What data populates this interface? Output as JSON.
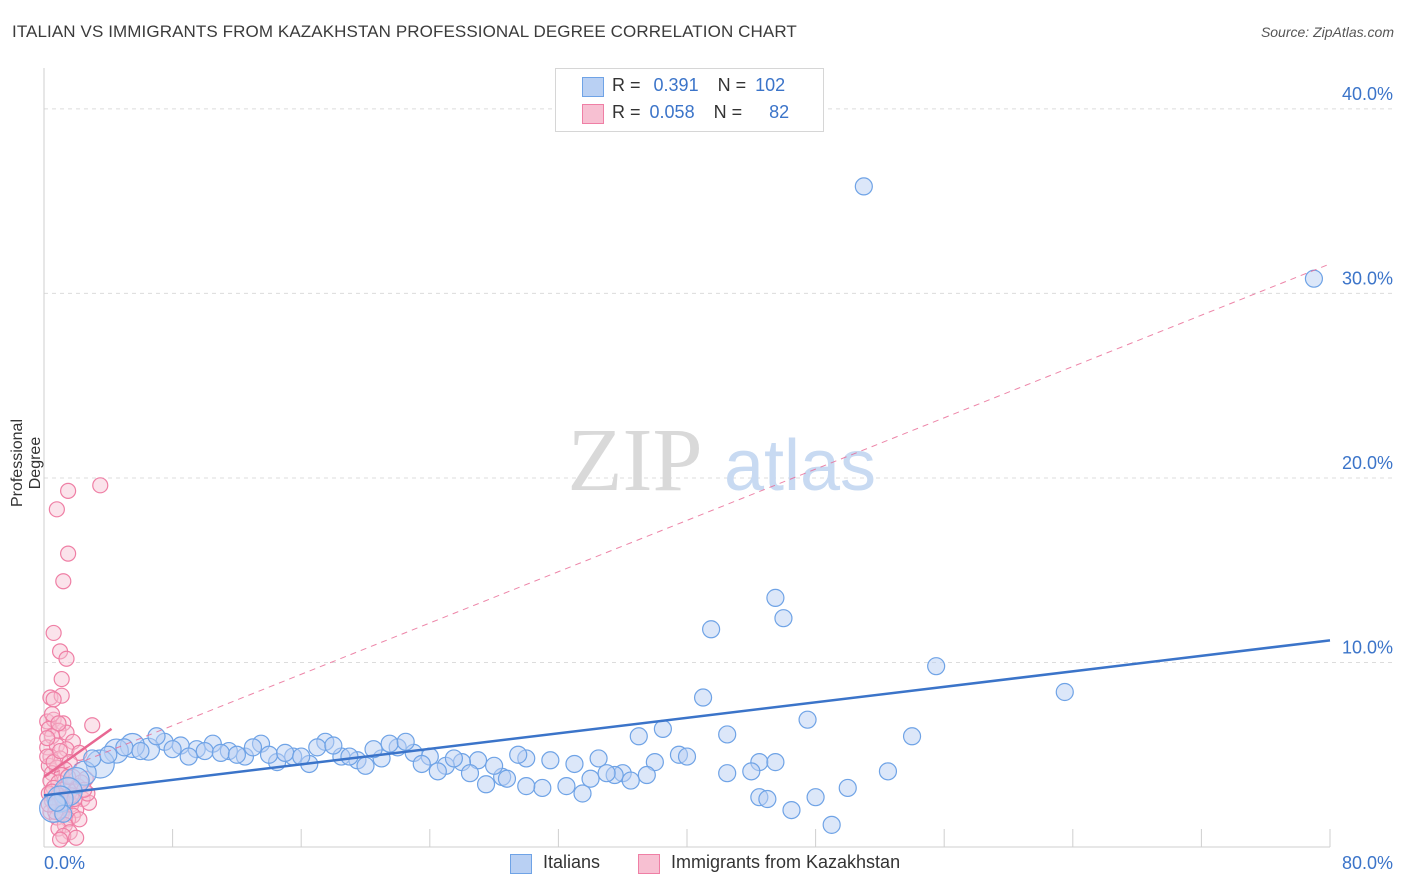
{
  "title": "ITALIAN VS IMMIGRANTS FROM KAZAKHSTAN PROFESSIONAL DEGREE CORRELATION CHART",
  "source": "Source: ZipAtlas.com",
  "colors": {
    "blue": "#6fa3e6",
    "blue_fill": "#b9d0f3",
    "blue_line": "#3b74c9",
    "pink": "#ef7fa5",
    "pink_fill": "#f7c0d2",
    "pink_line": "#e86792"
  },
  "legend": {
    "rows": [
      {
        "r_label": "R =",
        "r_value": "0.391",
        "n_label": "N =",
        "n_value": "102"
      },
      {
        "r_label": "R =",
        "r_value": "0.058",
        "n_label": "N =",
        "n_value": "82"
      }
    ]
  },
  "bottom_legend": {
    "series1": "Italians",
    "series2": "Immigrants from Kazakhstan"
  },
  "watermark": {
    "part1": "ZIP",
    "part2": "atlas"
  },
  "chart_data": {
    "type": "scatter",
    "title": "ITALIAN VS IMMIGRANTS FROM KAZAKHSTAN PROFESSIONAL DEGREE CORRELATION CHART",
    "xlabel": "",
    "ylabel": "Professional Degree",
    "xlim": [
      0,
      80
    ],
    "ylim": [
      0,
      42
    ],
    "x_tick_labels": [
      "0.0%",
      "80.0%"
    ],
    "y_ticks": [
      {
        "value": 10,
        "label": "10.0%"
      },
      {
        "value": 20,
        "label": "20.0%"
      },
      {
        "value": 30,
        "label": "30.0%"
      },
      {
        "value": 40,
        "label": "40.0%"
      }
    ],
    "series": [
      {
        "name": "Italians",
        "r": 0.391,
        "n": 102,
        "trend": {
          "x0": 0,
          "y0": 2.8,
          "x1": 80,
          "y1": 11.2
        },
        "points": [
          [
            51,
            35.8
          ],
          [
            79,
            30.8
          ],
          [
            45.5,
            13.5
          ],
          [
            46,
            12.4
          ],
          [
            41.5,
            11.8
          ],
          [
            55.5,
            9.8
          ],
          [
            63.5,
            8.4
          ],
          [
            41,
            8.1
          ],
          [
            47.5,
            6.9
          ],
          [
            38.5,
            6.4
          ],
          [
            42.5,
            6.1
          ],
          [
            54,
            6.0
          ],
          [
            37,
            6.0
          ],
          [
            39.5,
            5.0
          ],
          [
            38,
            4.6
          ],
          [
            36,
            4.0
          ],
          [
            44.5,
            4.6
          ],
          [
            45.5,
            4.6
          ],
          [
            52.5,
            4.1
          ],
          [
            42.5,
            4.0
          ],
          [
            30,
            4.8
          ],
          [
            31.5,
            4.7
          ],
          [
            33,
            4.5
          ],
          [
            34.5,
            4.8
          ],
          [
            36.5,
            3.6
          ],
          [
            35.5,
            3.9
          ],
          [
            32.5,
            3.3
          ],
          [
            31,
            3.2
          ],
          [
            30,
            3.3
          ],
          [
            28.5,
            3.8
          ],
          [
            29.5,
            5.0
          ],
          [
            28,
            4.4
          ],
          [
            27,
            4.7
          ],
          [
            26,
            4.6
          ],
          [
            25,
            4.4
          ],
          [
            24,
            4.9
          ],
          [
            23,
            5.1
          ],
          [
            22,
            5.4
          ],
          [
            21,
            4.8
          ],
          [
            20.5,
            5.3
          ],
          [
            19.5,
            4.7
          ],
          [
            18.5,
            4.9
          ],
          [
            17.5,
            5.7
          ],
          [
            16.5,
            4.5
          ],
          [
            15.5,
            4.9
          ],
          [
            14.5,
            4.6
          ],
          [
            13.5,
            5.6
          ],
          [
            12.5,
            4.9
          ],
          [
            11.5,
            5.2
          ],
          [
            10.5,
            5.6
          ],
          [
            9.5,
            5.3
          ],
          [
            8.5,
            5.5
          ],
          [
            7.5,
            5.7
          ],
          [
            6.5,
            5.3
          ],
          [
            5.5,
            5.5
          ],
          [
            4.5,
            5.2
          ],
          [
            3.5,
            4.5
          ],
          [
            2.5,
            4.0
          ],
          [
            2.0,
            3.6
          ],
          [
            1.5,
            3.0
          ],
          [
            1.0,
            2.6
          ],
          [
            0.6,
            2.1
          ],
          [
            3.0,
            4.8
          ],
          [
            4.0,
            5.0
          ],
          [
            5.0,
            5.4
          ],
          [
            6.0,
            5.2
          ],
          [
            7.0,
            6.0
          ],
          [
            8.0,
            5.3
          ],
          [
            9.0,
            4.9
          ],
          [
            10.0,
            5.2
          ],
          [
            11.0,
            5.1
          ],
          [
            12.0,
            5.0
          ],
          [
            13.0,
            5.4
          ],
          [
            14.0,
            5.0
          ],
          [
            15.0,
            5.1
          ],
          [
            16.0,
            4.9
          ],
          [
            17.0,
            5.4
          ],
          [
            18.0,
            5.5
          ],
          [
            19.0,
            4.9
          ],
          [
            20.0,
            4.4
          ],
          [
            21.5,
            5.6
          ],
          [
            22.5,
            5.7
          ],
          [
            23.5,
            4.5
          ],
          [
            24.5,
            4.1
          ],
          [
            25.5,
            4.8
          ],
          [
            26.5,
            4.0
          ],
          [
            27.5,
            3.4
          ],
          [
            28.8,
            3.7
          ],
          [
            33.5,
            2.9
          ],
          [
            34,
            3.7
          ],
          [
            35,
            4.0
          ],
          [
            37.5,
            3.9
          ],
          [
            46.5,
            2.0
          ],
          [
            49,
            1.2
          ],
          [
            50,
            3.2
          ],
          [
            48,
            2.7
          ],
          [
            44.5,
            2.7
          ],
          [
            45,
            2.6
          ],
          [
            40,
            4.9
          ],
          [
            44,
            4.1
          ],
          [
            1.2,
            1.8
          ],
          [
            0.8,
            2.4
          ]
        ]
      },
      {
        "name": "Immigrants from Kazakhstan",
        "r": 0.058,
        "n": 82,
        "trend": {
          "x0": 0,
          "y0": 3.8,
          "x1": 4.2,
          "y1": 6.4
        },
        "trend_extended": {
          "x0": 0,
          "y0": 3.8,
          "x1": 80,
          "y1": 31.6
        },
        "points": [
          [
            3.5,
            19.6
          ],
          [
            1.5,
            19.3
          ],
          [
            0.8,
            18.3
          ],
          [
            1.5,
            15.9
          ],
          [
            1.2,
            14.4
          ],
          [
            0.6,
            11.6
          ],
          [
            1.0,
            10.6
          ],
          [
            1.4,
            10.2
          ],
          [
            1.1,
            9.1
          ],
          [
            0.4,
            8.1
          ],
          [
            1.1,
            8.2
          ],
          [
            0.6,
            8.0
          ],
          [
            0.2,
            6.8
          ],
          [
            0.6,
            6.9
          ],
          [
            1.2,
            6.7
          ],
          [
            3.0,
            6.6
          ],
          [
            0.3,
            6.4
          ],
          [
            0.9,
            6.3
          ],
          [
            1.4,
            6.2
          ],
          [
            0.5,
            6.0
          ],
          [
            1.8,
            5.7
          ],
          [
            0.2,
            5.4
          ],
          [
            0.8,
            5.5
          ],
          [
            1.4,
            5.3
          ],
          [
            2.2,
            5.1
          ],
          [
            0.4,
            4.9
          ],
          [
            1.0,
            4.8
          ],
          [
            1.6,
            4.6
          ],
          [
            0.3,
            4.4
          ],
          [
            0.8,
            4.3
          ],
          [
            1.3,
            4.2
          ],
          [
            0.5,
            4.0
          ],
          [
            1.1,
            3.9
          ],
          [
            1.8,
            3.8
          ],
          [
            2.6,
            3.7
          ],
          [
            0.4,
            3.6
          ],
          [
            0.9,
            3.5
          ],
          [
            1.5,
            3.4
          ],
          [
            2.1,
            3.3
          ],
          [
            0.6,
            3.2
          ],
          [
            1.2,
            3.1
          ],
          [
            1.9,
            3.0
          ],
          [
            0.3,
            2.9
          ],
          [
            0.9,
            2.8
          ],
          [
            1.4,
            2.7
          ],
          [
            2.4,
            2.6
          ],
          [
            0.5,
            2.5
          ],
          [
            1.0,
            2.4
          ],
          [
            1.7,
            2.3
          ],
          [
            2.8,
            2.4
          ],
          [
            0.7,
            2.2
          ],
          [
            1.3,
            2.1
          ],
          [
            2.0,
            2.0
          ],
          [
            0.4,
            1.9
          ],
          [
            1.1,
            1.8
          ],
          [
            1.8,
            1.7
          ],
          [
            0.8,
            1.6
          ],
          [
            1.5,
            1.5
          ],
          [
            2.2,
            1.5
          ],
          [
            1.3,
            1.2
          ],
          [
            0.9,
            1.0
          ],
          [
            1.6,
            0.8
          ],
          [
            1.2,
            0.6
          ],
          [
            2.0,
            0.5
          ],
          [
            1.0,
            0.4
          ],
          [
            1.3,
            2.4
          ],
          [
            1.7,
            2.8
          ],
          [
            2.3,
            3.5
          ],
          [
            2.7,
            2.9
          ],
          [
            0.2,
            5.9
          ],
          [
            0.5,
            7.2
          ],
          [
            0.9,
            6.7
          ],
          [
            0.2,
            4.9
          ],
          [
            0.6,
            4.6
          ],
          [
            1.0,
            5.2
          ],
          [
            0.5,
            3.0
          ],
          [
            1.5,
            3.8
          ],
          [
            0.7,
            1.9
          ],
          [
            1.1,
            2.6
          ],
          [
            0.3,
            2.3
          ],
          [
            1.9,
            2.6
          ],
          [
            2.5,
            3.1
          ]
        ]
      }
    ]
  }
}
